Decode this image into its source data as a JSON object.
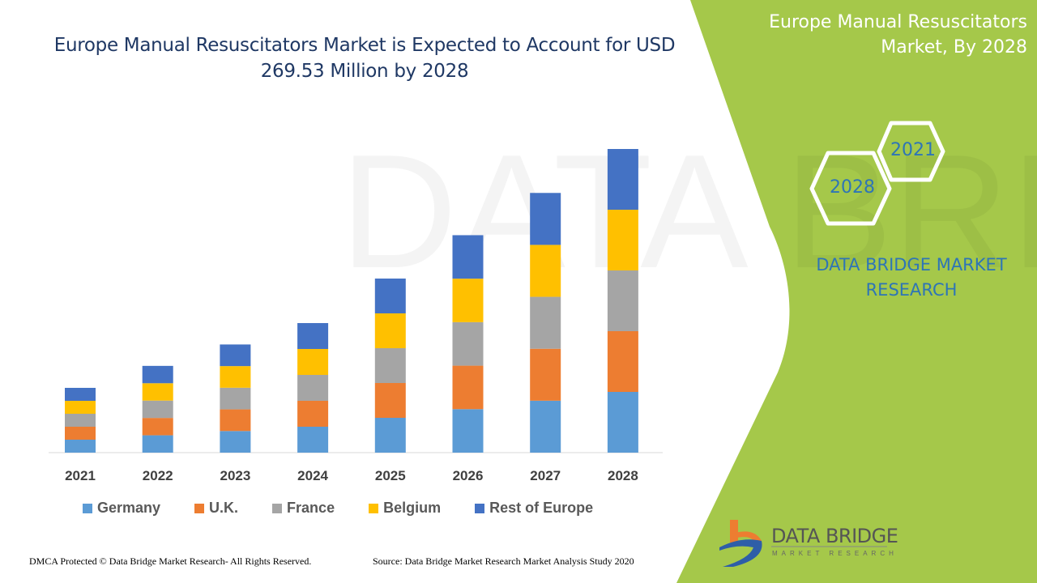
{
  "header": {
    "title": "Europe Manual Resuscitators Market is Expected to Account for USD 269.53 Million by 2028"
  },
  "side_panel": {
    "title": "Europe Manual Resuscitators Market, By 2028",
    "hex_years": [
      "2021",
      "2028"
    ],
    "brand_text": "DATA BRIDGE MARKET RESEARCH",
    "accent_color": "#a5c84a"
  },
  "logo": {
    "name": "DATA BRIDGE",
    "tagline": "MARKET RESEARCH"
  },
  "footer": {
    "copyright": "DMCA Protected © Data Bridge Market Research- All Rights Reserved.",
    "source": "Source: Data Bridge Market Research Market Analysis Study 2020"
  },
  "chart_data": {
    "type": "bar",
    "stacked": true,
    "title": "Europe Manual Resuscitators Market is Expected to Account for USD 269.53 Million by 2028",
    "xlabel": "",
    "ylabel": "",
    "grid": false,
    "legend_position": "bottom",
    "categories": [
      "2021",
      "2022",
      "2023",
      "2024",
      "2025",
      "2026",
      "2027",
      "2028"
    ],
    "series": [
      {
        "name": "Germany",
        "color": "#5b9bd5",
        "values": [
          11.5,
          15.4,
          19.2,
          23.0,
          30.9,
          38.6,
          46.1,
          53.9
        ]
      },
      {
        "name": "U.K.",
        "color": "#ed7d31",
        "values": [
          11.5,
          15.4,
          19.2,
          23.0,
          30.9,
          38.6,
          46.1,
          53.9
        ]
      },
      {
        "name": "France",
        "color": "#a5a5a5",
        "values": [
          11.5,
          15.4,
          19.2,
          23.0,
          30.9,
          38.6,
          46.1,
          53.9
        ]
      },
      {
        "name": "Belgium",
        "color": "#ffc000",
        "values": [
          11.5,
          15.4,
          19.2,
          23.0,
          30.9,
          38.6,
          46.1,
          53.9
        ]
      },
      {
        "name": "Rest of Europe",
        "color": "#4472c4",
        "values": [
          11.5,
          15.4,
          19.2,
          23.0,
          30.9,
          38.6,
          46.1,
          53.9
        ]
      }
    ]
  }
}
